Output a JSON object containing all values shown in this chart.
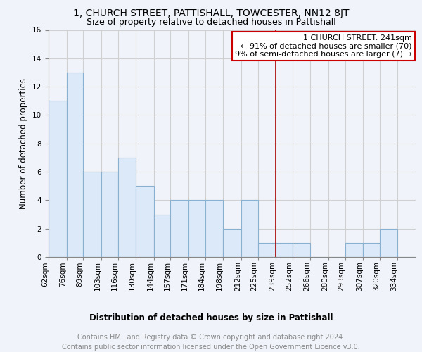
{
  "title": "1, CHURCH STREET, PATTISHALL, TOWCESTER, NN12 8JT",
  "subtitle": "Size of property relative to detached houses in Pattishall",
  "xlabel": "Distribution of detached houses by size in Pattishall",
  "ylabel": "Number of detached properties",
  "footer": "Contains HM Land Registry data © Crown copyright and database right 2024.\nContains public sector information licensed under the Open Government Licence v3.0.",
  "bin_labels": [
    "62sqm",
    "76sqm",
    "89sqm",
    "103sqm",
    "116sqm",
    "130sqm",
    "144sqm",
    "157sqm",
    "171sqm",
    "184sqm",
    "198sqm",
    "212sqm",
    "225sqm",
    "239sqm",
    "252sqm",
    "266sqm",
    "280sqm",
    "293sqm",
    "307sqm",
    "320sqm",
    "334sqm"
  ],
  "bin_edges": [
    62,
    76,
    89,
    103,
    116,
    130,
    144,
    157,
    171,
    184,
    198,
    212,
    225,
    239,
    252,
    266,
    280,
    293,
    307,
    320,
    334
  ],
  "bar_heights": [
    11,
    13,
    6,
    6,
    7,
    5,
    3,
    4,
    4,
    4,
    2,
    4,
    1,
    1,
    1,
    0,
    0,
    1,
    1,
    2,
    0
  ],
  "bar_color": "#dce9f8",
  "bar_edge_color": "#8ab0d0",
  "vline_x": 239,
  "vline_color": "#aa0000",
  "annotation_text": "1 CHURCH STREET: 241sqm\n← 91% of detached houses are smaller (70)\n9% of semi-detached houses are larger (7) →",
  "annotation_box_color": "#cc0000",
  "ylim": [
    0,
    16
  ],
  "yticks": [
    0,
    2,
    4,
    6,
    8,
    10,
    12,
    14,
    16
  ],
  "grid_color": "#d0d0d0",
  "background_color": "#f0f4fa",
  "title_fontsize": 10,
  "subtitle_fontsize": 9,
  "axis_label_fontsize": 8.5,
  "tick_fontsize": 7.5,
  "footer_fontsize": 7,
  "annotation_fontsize": 8
}
